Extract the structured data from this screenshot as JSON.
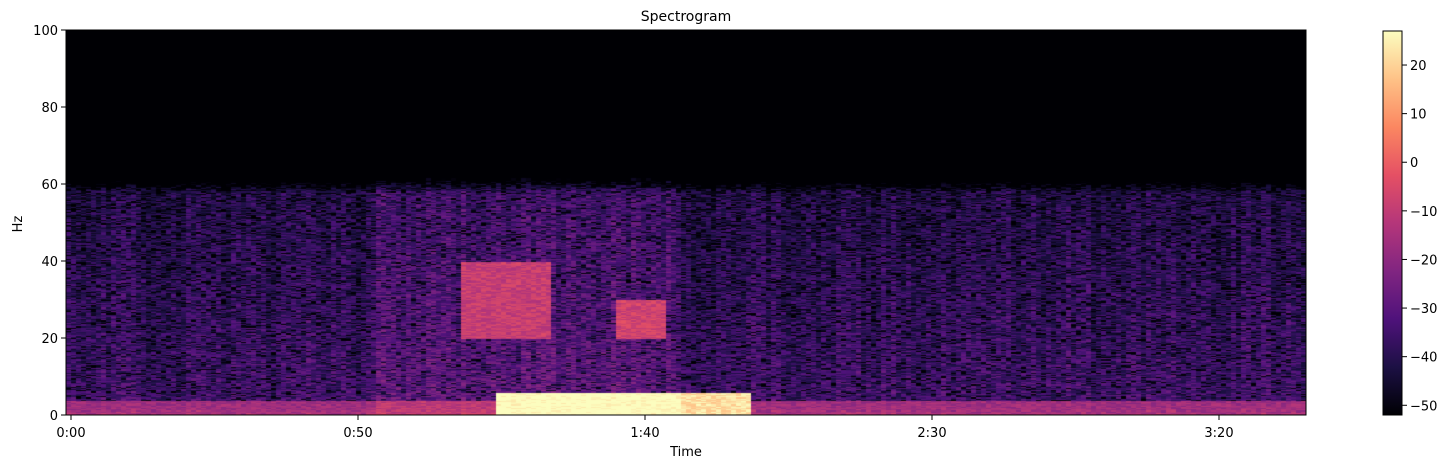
{
  "chart_data": {
    "type": "heatmap",
    "title": "Spectrogram",
    "xlabel": "Time",
    "ylabel": "Hz",
    "x_range_seconds": [
      0,
      217
    ],
    "x_ticks": [
      {
        "value": 0,
        "label": "0:00"
      },
      {
        "value": 50,
        "label": "0:50"
      },
      {
        "value": 100,
        "label": "1:40"
      },
      {
        "value": 150,
        "label": "2:30"
      },
      {
        "value": 200,
        "label": "3:20"
      }
    ],
    "ylim": [
      0,
      100
    ],
    "y_ticks": [
      0,
      20,
      40,
      60,
      80,
      100
    ],
    "colorbar": {
      "colormap": "magma",
      "range_db": [
        -52,
        27
      ],
      "ticks": [
        20,
        10,
        0,
        -10,
        -20,
        -30,
        -40,
        -50
      ]
    },
    "energy_cutoff_hz": 61,
    "hotspots": [
      {
        "t_start": 75,
        "t_end": 120,
        "f_low": 0,
        "f_high": 6,
        "level_db": 27
      },
      {
        "t_start": 69,
        "t_end": 85,
        "f_low": 20,
        "f_high": 40,
        "level_db": -10
      },
      {
        "t_start": 96,
        "t_end": 105,
        "f_low": 20,
        "f_high": 30,
        "level_db": -8
      },
      {
        "t_start": 0,
        "t_end": 217,
        "f_low": 0,
        "f_high": 4,
        "level_db": -12
      }
    ]
  }
}
